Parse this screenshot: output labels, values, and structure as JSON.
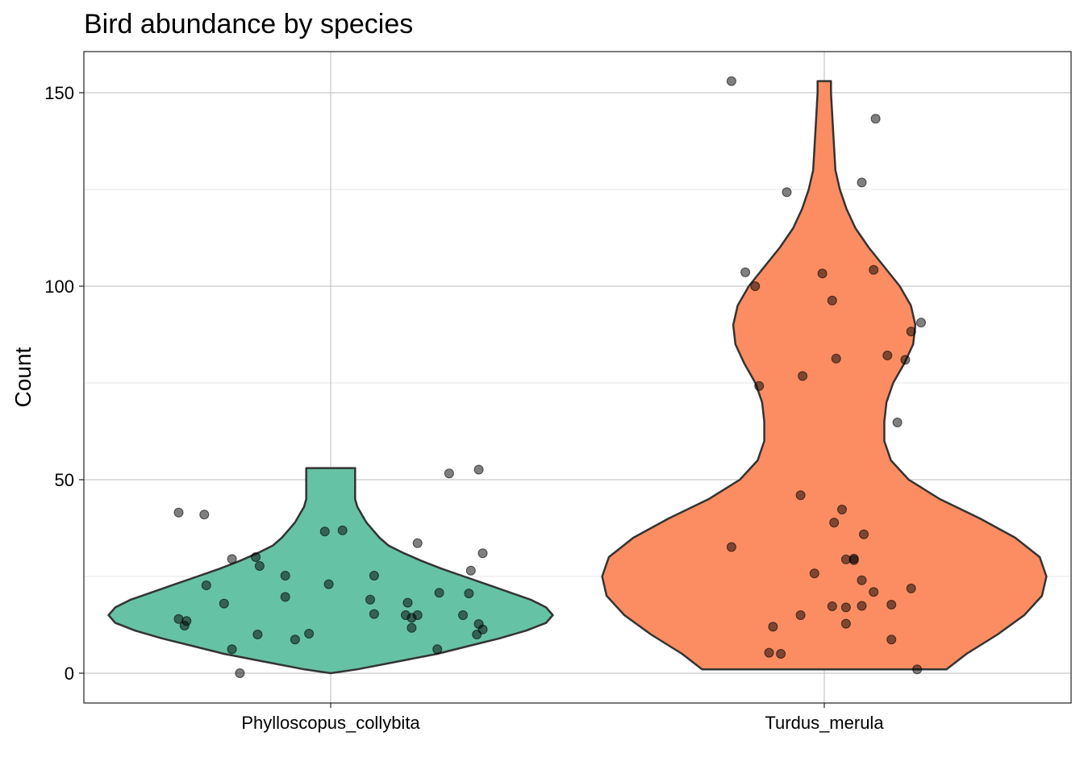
{
  "chart_data": {
    "type": "violin",
    "title": "Bird abundance by species",
    "xlabel": "",
    "ylabel": "Count",
    "ylim": [
      -8,
      160
    ],
    "yticks": [
      0,
      50,
      100,
      150
    ],
    "grid": true,
    "legend": "none",
    "categories": [
      "Phylloscopus_collybita",
      "Turdus_merula"
    ],
    "series": [
      {
        "category": "Phylloscopus_collybita",
        "color": "#66c2a5",
        "min": 0,
        "max": 53,
        "density_profile": [
          [
            0,
            0.0
          ],
          [
            1,
            0.12
          ],
          [
            3,
            0.3
          ],
          [
            5,
            0.48
          ],
          [
            7,
            0.62
          ],
          [
            9,
            0.76
          ],
          [
            11,
            0.88
          ],
          [
            13,
            0.97
          ],
          [
            15,
            1.0
          ],
          [
            17,
            0.97
          ],
          [
            19,
            0.9
          ],
          [
            21,
            0.8
          ],
          [
            23,
            0.7
          ],
          [
            25,
            0.6
          ],
          [
            27,
            0.5
          ],
          [
            29,
            0.41
          ],
          [
            31,
            0.33
          ],
          [
            33,
            0.26
          ],
          [
            35,
            0.22
          ],
          [
            37,
            0.19
          ],
          [
            39,
            0.16
          ],
          [
            41,
            0.14
          ],
          [
            43,
            0.12
          ],
          [
            45,
            0.11
          ],
          [
            47,
            0.11
          ],
          [
            49,
            0.11
          ],
          [
            51,
            0.11
          ],
          [
            53,
            0.11
          ]
        ],
        "points": [
          {
            "x": -0.77,
            "y": 41.5
          },
          {
            "x": -0.64,
            "y": 41
          },
          {
            "x": -0.5,
            "y": 29.5
          },
          {
            "x": -0.63,
            "y": 22.7
          },
          {
            "x": -0.54,
            "y": 18
          },
          {
            "x": -0.77,
            "y": 14
          },
          {
            "x": -0.73,
            "y": 13.5
          },
          {
            "x": -0.74,
            "y": 12.3
          },
          {
            "x": -0.5,
            "y": 6.2
          },
          {
            "x": -0.46,
            "y": 0
          },
          {
            "x": -0.38,
            "y": 30
          },
          {
            "x": -0.36,
            "y": 27.7
          },
          {
            "x": -0.23,
            "y": 25.2
          },
          {
            "x": -0.23,
            "y": 19.7
          },
          {
            "x": -0.37,
            "y": 10
          },
          {
            "x": -0.18,
            "y": 8.7
          },
          {
            "x": -0.11,
            "y": 10.2
          },
          {
            "x": -0.03,
            "y": 36.6
          },
          {
            "x": 0.06,
            "y": 36.9
          },
          {
            "x": -0.01,
            "y": 23
          },
          {
            "x": 0.22,
            "y": 25.2
          },
          {
            "x": 0.2,
            "y": 19
          },
          {
            "x": 0.22,
            "y": 15.3
          },
          {
            "x": 0.39,
            "y": 18.2
          },
          {
            "x": 0.38,
            "y": 15
          },
          {
            "x": 0.41,
            "y": 14.3
          },
          {
            "x": 0.44,
            "y": 15
          },
          {
            "x": 0.41,
            "y": 11.7
          },
          {
            "x": 0.44,
            "y": 33.6
          },
          {
            "x": 0.55,
            "y": 20.8
          },
          {
            "x": 0.54,
            "y": 6.2
          },
          {
            "x": 0.6,
            "y": 51.6
          },
          {
            "x": 0.75,
            "y": 52.6
          },
          {
            "x": 0.71,
            "y": 26.5
          },
          {
            "x": 0.77,
            "y": 31
          },
          {
            "x": 0.7,
            "y": 20.6
          },
          {
            "x": 0.67,
            "y": 15
          },
          {
            "x": 0.75,
            "y": 12.7
          },
          {
            "x": 0.77,
            "y": 11.3
          },
          {
            "x": 0.74,
            "y": 10
          }
        ]
      },
      {
        "category": "Turdus_merula",
        "color": "#fc8d62",
        "min": 1,
        "max": 153,
        "density_profile": [
          [
            1,
            0.55
          ],
          [
            5,
            0.64
          ],
          [
            10,
            0.78
          ],
          [
            15,
            0.9
          ],
          [
            20,
            0.98
          ],
          [
            25,
            1.0
          ],
          [
            30,
            0.97
          ],
          [
            35,
            0.86
          ],
          [
            40,
            0.7
          ],
          [
            45,
            0.52
          ],
          [
            50,
            0.38
          ],
          [
            55,
            0.3
          ],
          [
            60,
            0.27
          ],
          [
            65,
            0.27
          ],
          [
            70,
            0.28
          ],
          [
            75,
            0.31
          ],
          [
            80,
            0.36
          ],
          [
            85,
            0.4
          ],
          [
            90,
            0.41
          ],
          [
            95,
            0.39
          ],
          [
            100,
            0.34
          ],
          [
            105,
            0.27
          ],
          [
            110,
            0.2
          ],
          [
            115,
            0.14
          ],
          [
            120,
            0.1
          ],
          [
            125,
            0.07
          ],
          [
            130,
            0.05
          ],
          [
            140,
            0.04
          ],
          [
            150,
            0.03
          ],
          [
            153,
            0.03
          ]
        ],
        "points": [
          {
            "x": -0.47,
            "y": 153
          },
          {
            "x": -0.47,
            "y": 32.6
          },
          {
            "x": -0.4,
            "y": 103.6
          },
          {
            "x": -0.35,
            "y": 100
          },
          {
            "x": -0.33,
            "y": 74.2
          },
          {
            "x": -0.26,
            "y": 12
          },
          {
            "x": -0.28,
            "y": 5.3
          },
          {
            "x": -0.22,
            "y": 5
          },
          {
            "x": -0.19,
            "y": 124.3
          },
          {
            "x": -0.11,
            "y": 76.8
          },
          {
            "x": -0.12,
            "y": 46
          },
          {
            "x": -0.12,
            "y": 15
          },
          {
            "x": -0.05,
            "y": 25.8
          },
          {
            "x": -0.01,
            "y": 103.3
          },
          {
            "x": 0.04,
            "y": 96.3
          },
          {
            "x": 0.06,
            "y": 81.3
          },
          {
            "x": 0.09,
            "y": 42.3
          },
          {
            "x": 0.05,
            "y": 38.9
          },
          {
            "x": 0.04,
            "y": 17.3
          },
          {
            "x": 0.11,
            "y": 29.4
          },
          {
            "x": 0.15,
            "y": 29.2
          },
          {
            "x": 0.15,
            "y": 29.6
          },
          {
            "x": 0.11,
            "y": 17
          },
          {
            "x": 0.11,
            "y": 12.8
          },
          {
            "x": 0.19,
            "y": 126.8
          },
          {
            "x": 0.2,
            "y": 35.9
          },
          {
            "x": 0.19,
            "y": 24
          },
          {
            "x": 0.19,
            "y": 17.4
          },
          {
            "x": 0.25,
            "y": 21
          },
          {
            "x": 0.25,
            "y": 104.2
          },
          {
            "x": 0.26,
            "y": 143.3
          },
          {
            "x": 0.32,
            "y": 82.1
          },
          {
            "x": 0.34,
            "y": 17.7
          },
          {
            "x": 0.34,
            "y": 8.7
          },
          {
            "x": 0.37,
            "y": 64.8
          },
          {
            "x": 0.41,
            "y": 81
          },
          {
            "x": 0.44,
            "y": 88.3
          },
          {
            "x": 0.44,
            "y": 21.9
          },
          {
            "x": 0.47,
            "y": 1
          },
          {
            "x": 0.49,
            "y": 90.6
          }
        ]
      }
    ]
  }
}
